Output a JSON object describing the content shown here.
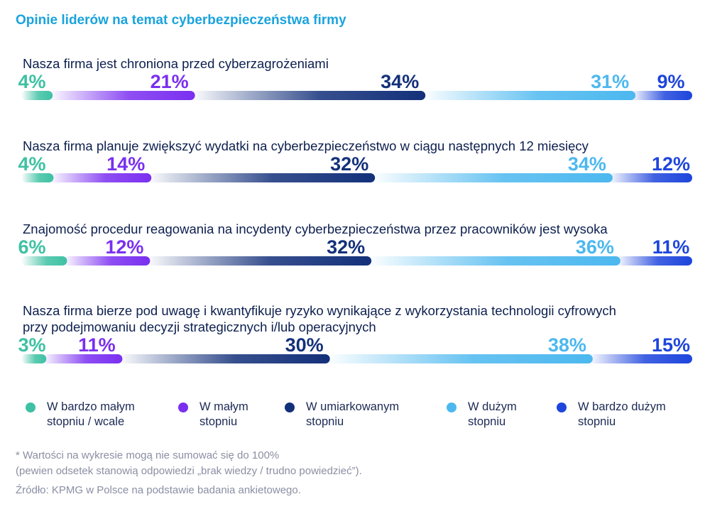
{
  "title": "Opinie liderów na temat cyberbezpieczeństwa firmy",
  "chart_data": {
    "type": "bar",
    "stacked": true,
    "orientation": "horizontal",
    "title": "Opinie liderów na temat cyberbezpieczeństwa firmy",
    "categories": [
      "Nasza firma jest chroniona przed cyberzagrożeniami",
      "Nasza firma planuje zwiększyć wydatki na cyberbezpieczeństwo w ciągu następnych 12 miesięcy",
      "Znajomość procedur reagowania na incydenty cyberbezpieczeństwa przez pracowników jest wysoka",
      "Nasza firma bierze pod uwagę i kwantyfikuje ryzyko wynikające z wykorzystania technologii cyfrowych\nprzy podejmowaniu decyzji strategicznych i/lub operacyjnych"
    ],
    "series": [
      {
        "name": "W bardzo małym stopniu / wcale",
        "color": "#3ec1a3",
        "values": [
          4,
          4,
          6,
          3
        ]
      },
      {
        "name": "W małym stopniu",
        "color": "#7a2ff0",
        "values": [
          21,
          14,
          12,
          11
        ]
      },
      {
        "name": "W umiarkowanym stopniu",
        "color": "#13307a",
        "values": [
          34,
          32,
          32,
          30
        ]
      },
      {
        "name": "W dużym stopniu",
        "color": "#4cb8ef",
        "values": [
          31,
          34,
          36,
          38
        ]
      },
      {
        "name": "W bardzo dużym stopniu",
        "color": "#1e45dc",
        "values": [
          9,
          12,
          11,
          15
        ]
      }
    ],
    "value_labels": [
      [
        "4%",
        "21%",
        "34%",
        "31%",
        "9%"
      ],
      [
        "4%",
        "14%",
        "32%",
        "34%",
        "12%"
      ],
      [
        "6%",
        "12%",
        "32%",
        "36%",
        "11%"
      ],
      [
        "3%",
        "11%",
        "30%",
        "38%",
        "15%"
      ]
    ]
  },
  "legend": [
    {
      "label": "W bardzo małym\nstopniu / wcale",
      "color": "#3ec1a3"
    },
    {
      "label": "W małym\nstopniu",
      "color": "#7a2ff0"
    },
    {
      "label": "W umiarkowanym\nstopniu",
      "color": "#13307a"
    },
    {
      "label": "W dużym\nstopniu",
      "color": "#4cb8ef"
    },
    {
      "label": "W bardzo dużym\nstopniu",
      "color": "#1e45dc"
    }
  ],
  "footnote": {
    "line1": "* Wartości na wykresie mogą nie sumować się do 100%",
    "line2": "(pewien odsetek stanowią odpowiedzi „brak wiedzy / trudno powiedzieć”).",
    "source": "Źródło: KPMG w Polsce na podstawie badania ankietowego."
  }
}
